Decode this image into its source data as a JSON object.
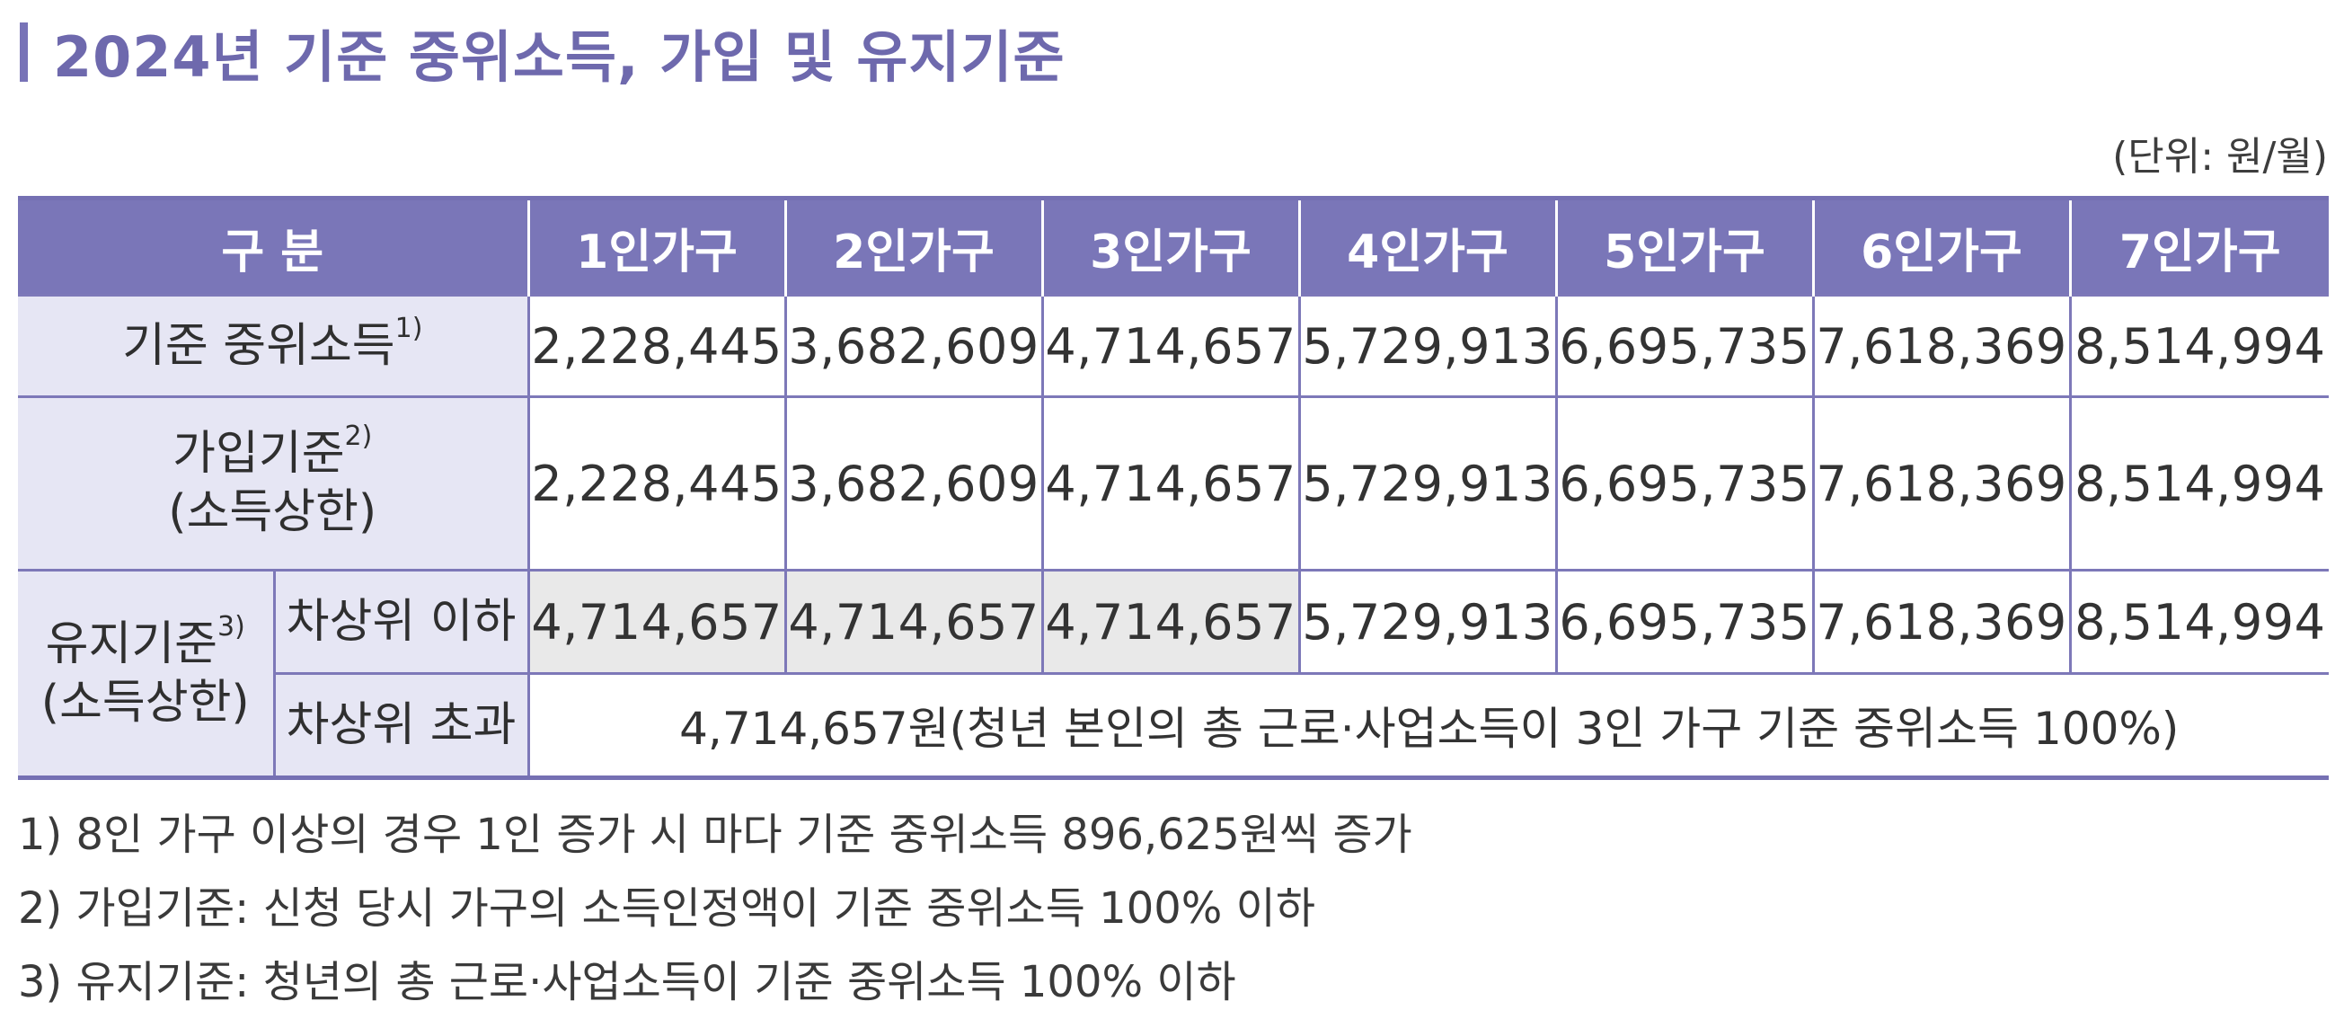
{
  "title": "2024년 기준 중위소득, 가입 및 유지기준",
  "unit": "(단위: 원/월)",
  "table": {
    "corner": "구 분",
    "columns": [
      "1인가구",
      "2인가구",
      "3인가구",
      "4인가구",
      "5인가구",
      "6인가구",
      "7인가구"
    ],
    "row1": {
      "label": "기준 중위소득",
      "sup": "1)",
      "values": [
        "2,228,445",
        "3,682,609",
        "4,714,657",
        "5,729,913",
        "6,695,735",
        "7,618,369",
        "8,514,994"
      ]
    },
    "row2": {
      "label_line1": "가입기준",
      "sup": "2)",
      "label_line2": "(소득상한)",
      "values": [
        "2,228,445",
        "3,682,609",
        "4,714,657",
        "5,729,913",
        "6,695,735",
        "7,618,369",
        "8,514,994"
      ]
    },
    "row3": {
      "group_line1": "유지기준",
      "group_sup": "3)",
      "group_line2": "(소득상한)",
      "sublabel": "차상위 이하",
      "values": [
        "4,714,657",
        "4,714,657",
        "4,714,657",
        "5,729,913",
        "6,695,735",
        "7,618,369",
        "8,514,994"
      ]
    },
    "row4": {
      "sublabel": "차상위 초과",
      "text": "4,714,657원(청년 본인의 총 근로·사업소득이 3인 가구 기준 중위소득 100%)"
    }
  },
  "notes": [
    "1) 8인 가구 이상의 경우 1인 증가 시 마다 기준 중위소득 896,625원씩 증가",
    "2) 가입기준: 신청 당시 가구의 소득인정액이 기준 중위소득 100% 이하",
    "3) 유지기준: 청년의 총 근로·사업소득이 기준 중위소득 100% 이하"
  ],
  "colors": {
    "accent": "#7a76b8",
    "header_label_bg": "#e6e6f4",
    "shade": "#e9e9e9"
  }
}
